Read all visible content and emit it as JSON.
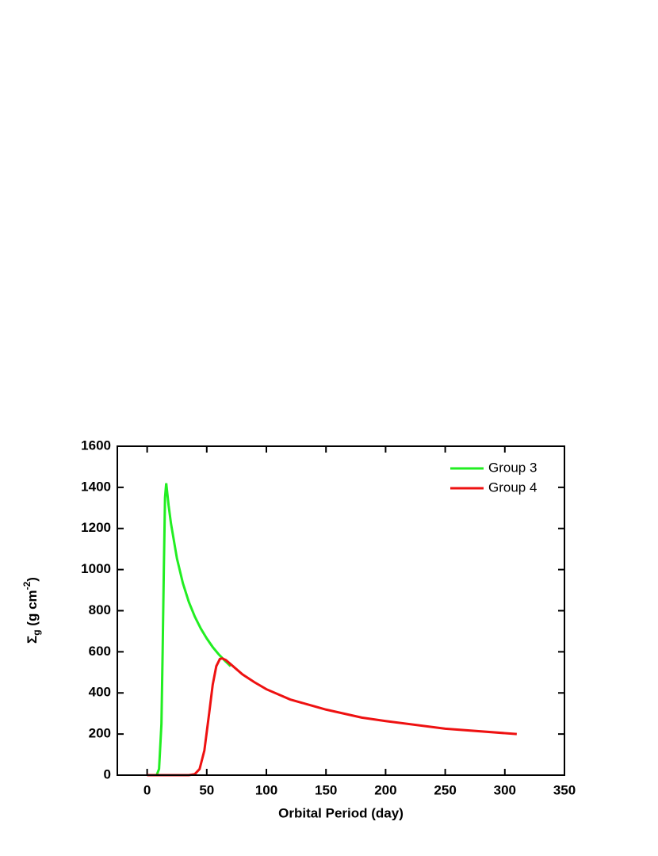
{
  "chart_data": {
    "type": "line",
    "xlabel": "Orbital Period (day)",
    "ylabel": [
      "Σ",
      "g",
      " (g cm",
      "-2",
      ")"
    ],
    "xlim": [
      -25,
      350
    ],
    "xticks": [
      0,
      50,
      100,
      150,
      200,
      250,
      300,
      350
    ],
    "ylim": [
      0,
      1600
    ],
    "yticks": [
      0,
      200,
      400,
      600,
      800,
      1000,
      1200,
      1400,
      1600
    ],
    "legend": "upper right",
    "series": [
      {
        "name": "Group 3",
        "color": "#22ee22",
        "x": [
          8,
          10,
          12,
          13,
          14,
          15,
          16,
          18,
          20,
          25,
          30,
          35,
          40,
          45,
          50,
          55,
          60,
          65,
          70
        ],
        "values": [
          0,
          30,
          250,
          600,
          1000,
          1350,
          1420,
          1312,
          1224,
          1054,
          933,
          842,
          771,
          713,
          665,
          623,
          588,
          558,
          530
        ]
      },
      {
        "name": "Group 4",
        "color": "#ee1111",
        "x": [
          0,
          35,
          40,
          44,
          48,
          52,
          55,
          58,
          61,
          63,
          66,
          70,
          80,
          90,
          100,
          120,
          150,
          180,
          200,
          250,
          310
        ],
        "values": [
          0,
          0,
          5,
          30,
          120,
          300,
          440,
          530,
          565,
          568,
          560,
          540,
          490,
          452,
          418,
          368,
          319,
          280,
          263,
          226,
          200
        ]
      }
    ]
  }
}
